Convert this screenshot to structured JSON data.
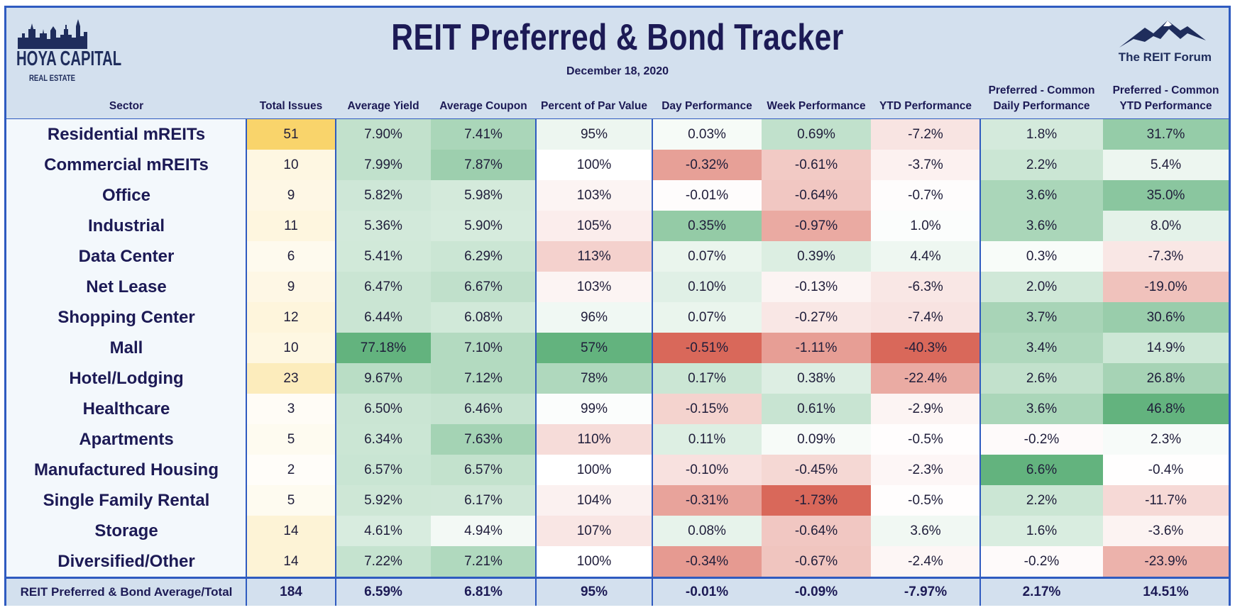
{
  "title": "REIT Preferred & Bond Tracker",
  "date": "December 18, 2020",
  "logos": {
    "left_main": "HOYA CAPITAL",
    "left_sub": "REAL ESTATE",
    "right": "The REIT Forum"
  },
  "columns": [
    {
      "key": "sector",
      "label": "Sector"
    },
    {
      "key": "total",
      "label": "Total Issues"
    },
    {
      "key": "yield",
      "label": "Average Yield"
    },
    {
      "key": "coupon",
      "label": "Average Coupon"
    },
    {
      "key": "par",
      "label": "Percent of Par Value"
    },
    {
      "key": "day",
      "label": "Day Performance"
    },
    {
      "key": "week",
      "label": "Week Performance"
    },
    {
      "key": "ytd",
      "label": "YTD Performance"
    },
    {
      "key": "pcd",
      "label": "Preferred - Common Daily Performance"
    },
    {
      "key": "pcy",
      "label": "Preferred - Common YTD Performance"
    }
  ],
  "colors": {
    "border": "#2f5bc0",
    "header_bg": "#d3e0ee",
    "title": "#1c1a55",
    "positive": "#63b37e",
    "negative": "#d9685a",
    "count": "#f9d46b"
  },
  "chart_data": {
    "type": "table",
    "title": "REIT Preferred & Bond Tracker",
    "subtitle": "December 18, 2020",
    "rows": [
      {
        "sector": "Residential mREITs",
        "total": "51",
        "yield": "7.90%",
        "coupon": "7.41%",
        "par": "95%",
        "day": "0.03%",
        "week": "0.69%",
        "ytd": "-7.2%",
        "pcd": "1.8%",
        "pcy": "31.7%"
      },
      {
        "sector": "Commercial mREITs",
        "total": "10",
        "yield": "7.99%",
        "coupon": "7.87%",
        "par": "100%",
        "day": "-0.32%",
        "week": "-0.61%",
        "ytd": "-3.7%",
        "pcd": "2.2%",
        "pcy": "5.4%"
      },
      {
        "sector": "Office",
        "total": "9",
        "yield": "5.82%",
        "coupon": "5.98%",
        "par": "103%",
        "day": "-0.01%",
        "week": "-0.64%",
        "ytd": "-0.7%",
        "pcd": "3.6%",
        "pcy": "35.0%"
      },
      {
        "sector": "Industrial",
        "total": "11",
        "yield": "5.36%",
        "coupon": "5.90%",
        "par": "105%",
        "day": "0.35%",
        "week": "-0.97%",
        "ytd": "1.0%",
        "pcd": "3.6%",
        "pcy": "8.0%"
      },
      {
        "sector": "Data Center",
        "total": "6",
        "yield": "5.41%",
        "coupon": "6.29%",
        "par": "113%",
        "day": "0.07%",
        "week": "0.39%",
        "ytd": "4.4%",
        "pcd": "0.3%",
        "pcy": "-7.3%"
      },
      {
        "sector": "Net Lease",
        "total": "9",
        "yield": "6.47%",
        "coupon": "6.67%",
        "par": "103%",
        "day": "0.10%",
        "week": "-0.13%",
        "ytd": "-6.3%",
        "pcd": "2.0%",
        "pcy": "-19.0%"
      },
      {
        "sector": "Shopping Center",
        "total": "12",
        "yield": "6.44%",
        "coupon": "6.08%",
        "par": "96%",
        "day": "0.07%",
        "week": "-0.27%",
        "ytd": "-7.4%",
        "pcd": "3.7%",
        "pcy": "30.6%"
      },
      {
        "sector": "Mall",
        "total": "10",
        "yield": "77.18%",
        "coupon": "7.10%",
        "par": "57%",
        "day": "-0.51%",
        "week": "-1.11%",
        "ytd": "-40.3%",
        "pcd": "3.4%",
        "pcy": "14.9%"
      },
      {
        "sector": "Hotel/Lodging",
        "total": "23",
        "yield": "9.67%",
        "coupon": "7.12%",
        "par": "78%",
        "day": "0.17%",
        "week": "0.38%",
        "ytd": "-22.4%",
        "pcd": "2.6%",
        "pcy": "26.8%"
      },
      {
        "sector": "Healthcare",
        "total": "3",
        "yield": "6.50%",
        "coupon": "6.46%",
        "par": "99%",
        "day": "-0.15%",
        "week": "0.61%",
        "ytd": "-2.9%",
        "pcd": "3.6%",
        "pcy": "46.8%"
      },
      {
        "sector": "Apartments",
        "total": "5",
        "yield": "6.34%",
        "coupon": "7.63%",
        "par": "110%",
        "day": "0.11%",
        "week": "0.09%",
        "ytd": "-0.5%",
        "pcd": "-0.2%",
        "pcy": "2.3%"
      },
      {
        "sector": "Manufactured Housing",
        "total": "2",
        "yield": "6.57%",
        "coupon": "6.57%",
        "par": "100%",
        "day": "-0.10%",
        "week": "-0.45%",
        "ytd": "-2.3%",
        "pcd": "6.6%",
        "pcy": "-0.4%"
      },
      {
        "sector": "Single Family Rental",
        "total": "5",
        "yield": "5.92%",
        "coupon": "6.17%",
        "par": "104%",
        "day": "-0.31%",
        "week": "-1.73%",
        "ytd": "-0.5%",
        "pcd": "2.2%",
        "pcy": "-11.7%"
      },
      {
        "sector": "Storage",
        "total": "14",
        "yield": "4.61%",
        "coupon": "4.94%",
        "par": "107%",
        "day": "0.08%",
        "week": "-0.64%",
        "ytd": "3.6%",
        "pcd": "1.6%",
        "pcy": "-3.6%"
      },
      {
        "sector": "Diversified/Other",
        "total": "14",
        "yield": "7.22%",
        "coupon": "7.21%",
        "par": "100%",
        "day": "-0.34%",
        "week": "-0.67%",
        "ytd": "-2.4%",
        "pcd": "-0.2%",
        "pcy": "-23.9%"
      }
    ],
    "totals": {
      "sector": "REIT Preferred & Bond Average/Total",
      "total": "184",
      "yield": "6.59%",
      "coupon": "6.81%",
      "par": "95%",
      "day": "-0.01%",
      "week": "-0.09%",
      "ytd": "-7.97%",
      "pcd": "2.17%",
      "pcy": "14.51%"
    }
  }
}
